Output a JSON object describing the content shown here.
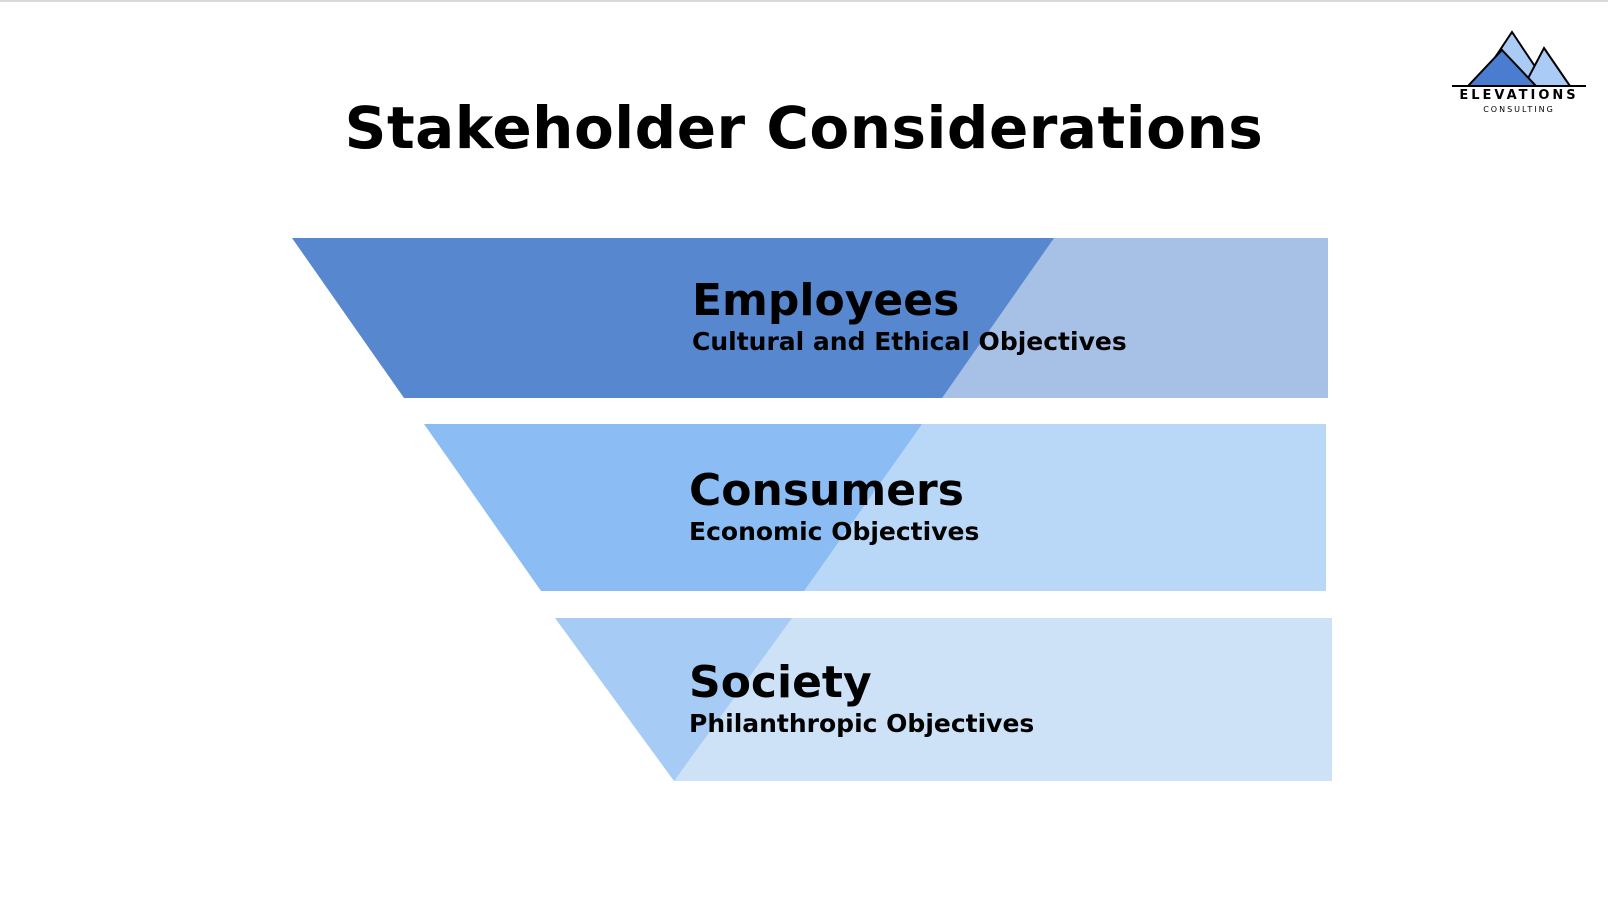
{
  "slide": {
    "title": "Stakeholder Considerations"
  },
  "logo": {
    "name": "ELEVATIONS",
    "subtitle": "CONSULTING",
    "icon": "mountain-icon",
    "colors": {
      "dark": "#4a7cd0",
      "light": "#a9cbf5",
      "outline": "#000000"
    }
  },
  "tiers": [
    {
      "heading": "Employees",
      "description": "Cultural and Ethical Objectives",
      "colors": {
        "wedge": "#5787cf",
        "band": "#a7c0e6"
      }
    },
    {
      "heading": "Consumers",
      "description": "Economic Objectives",
      "colors": {
        "wedge": "#8bbcf4",
        "band": "#b9d7f7"
      }
    },
    {
      "heading": "Society",
      "description": "Philanthropic Objectives",
      "colors": {
        "wedge": "#a6cbf4",
        "band": "#cde1f7"
      }
    }
  ]
}
